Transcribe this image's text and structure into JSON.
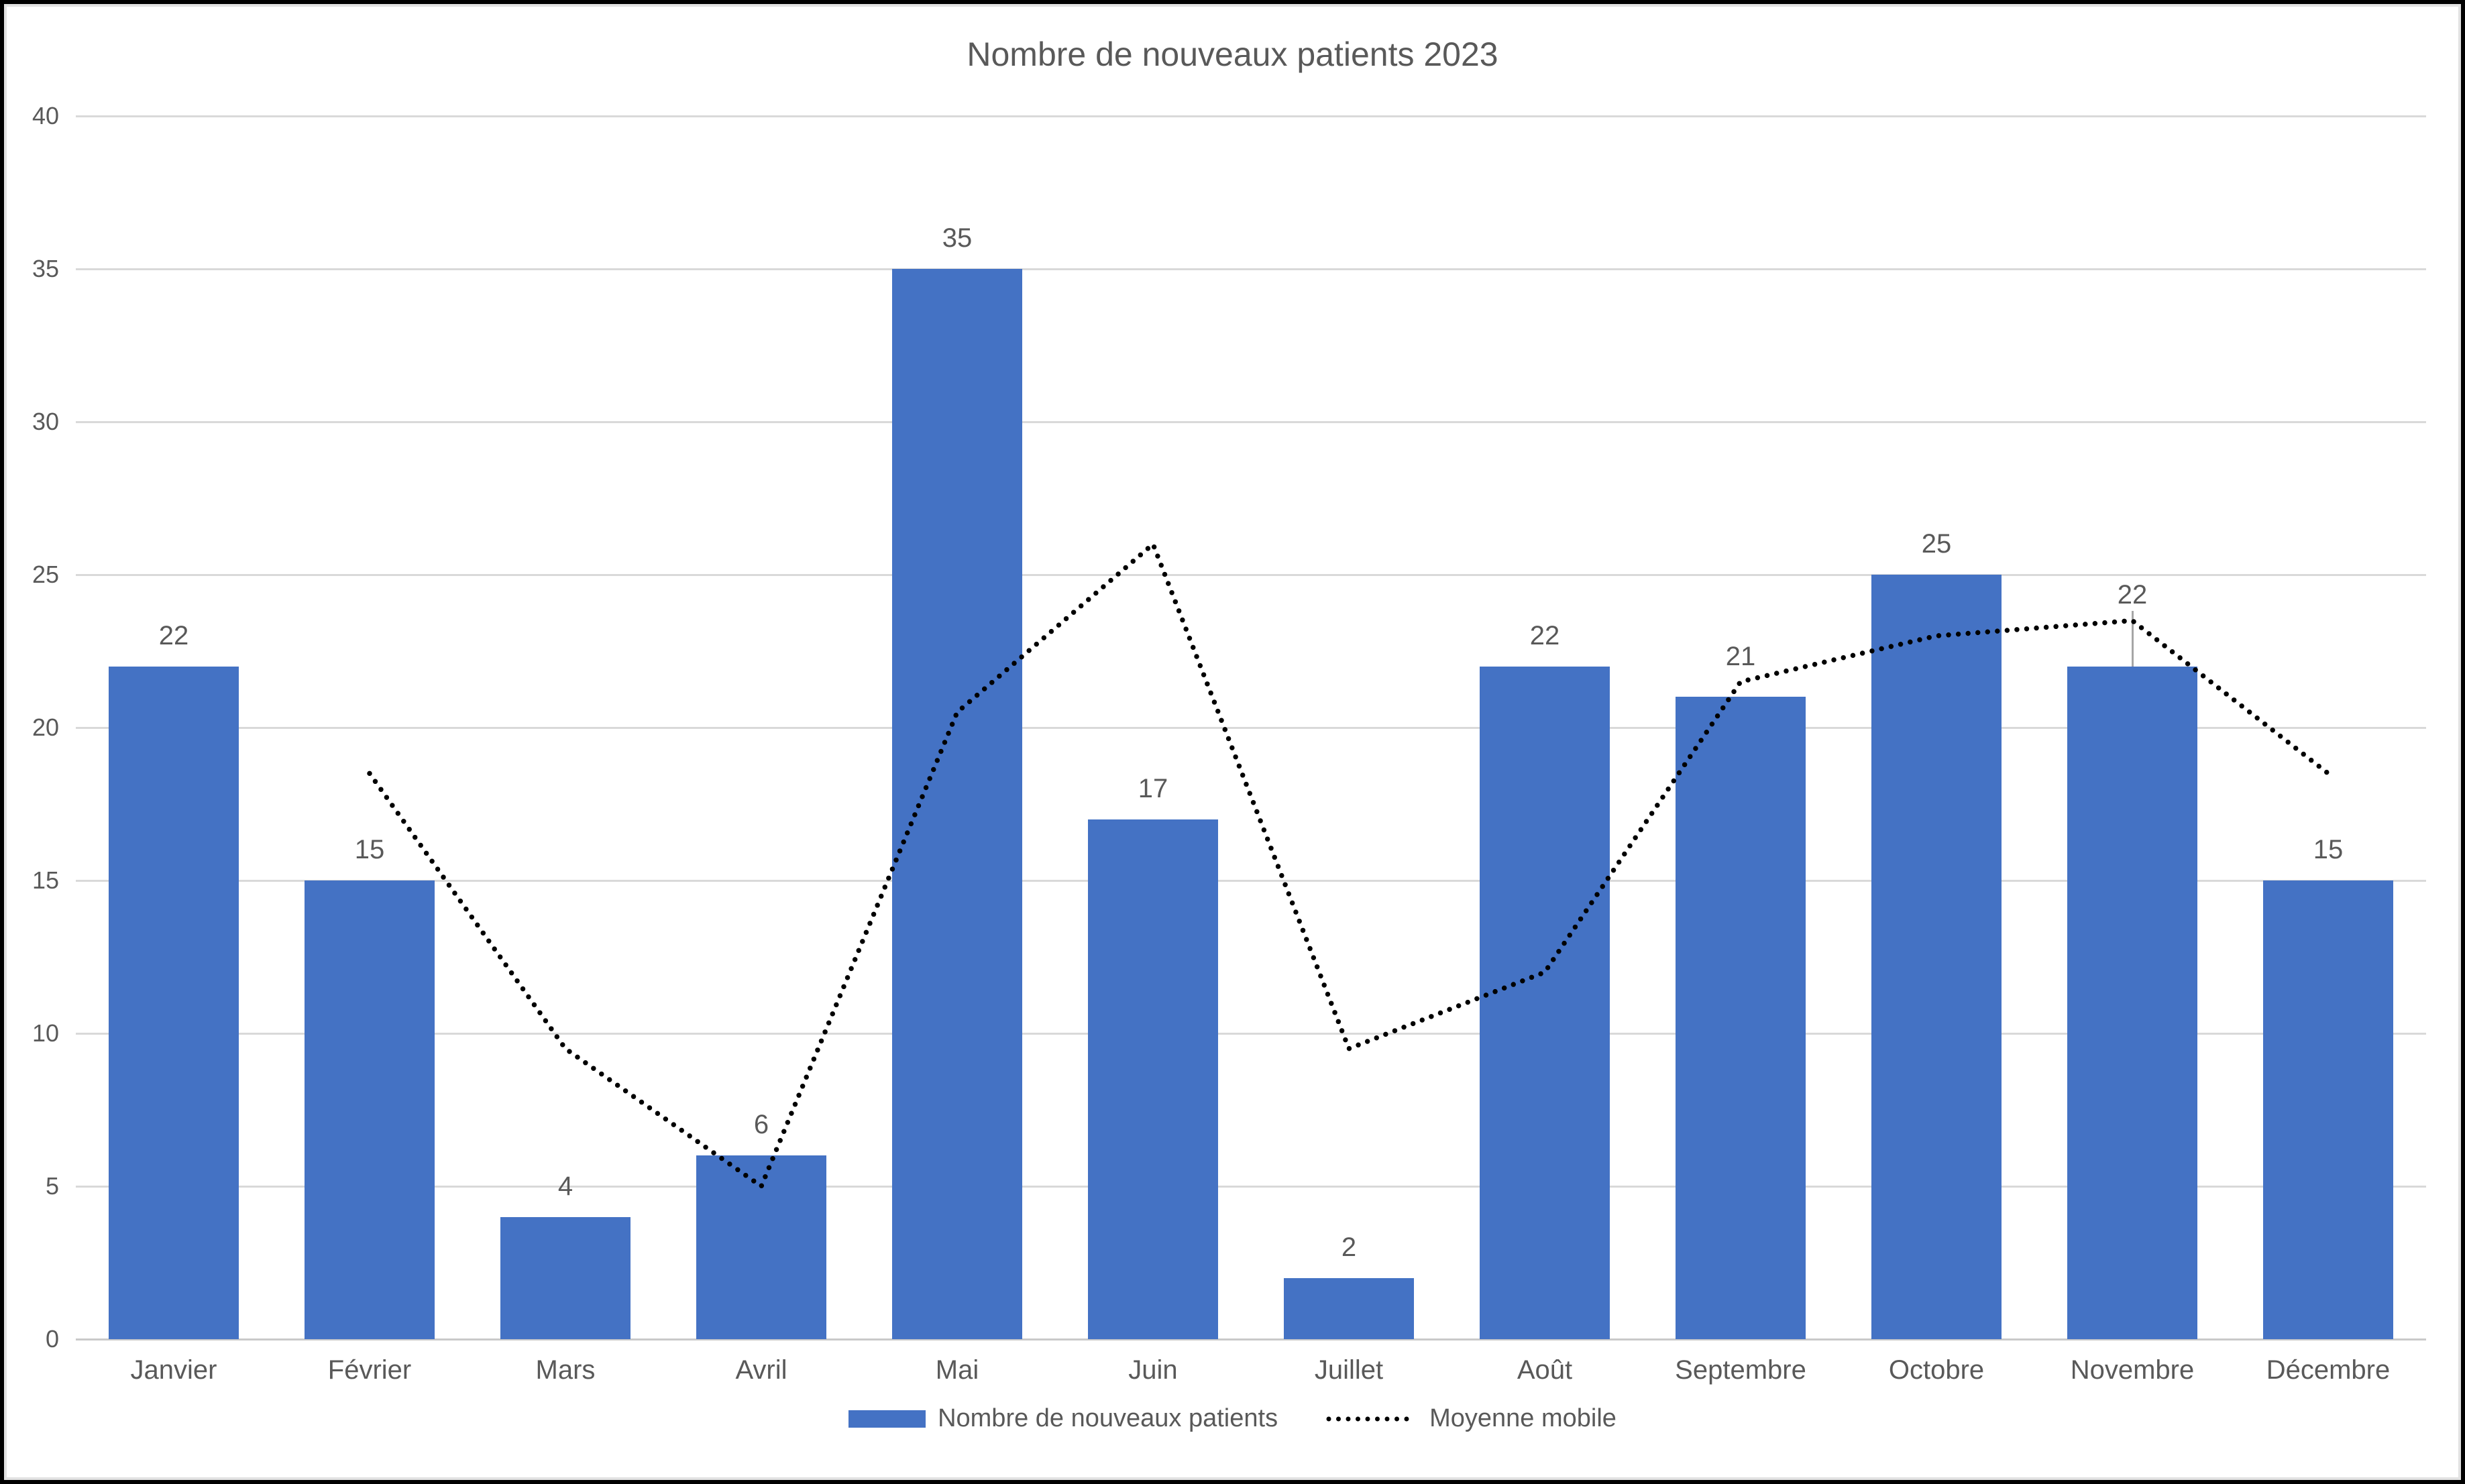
{
  "title": "Nombre de nouveaux patients 2023",
  "chart_data": {
    "type": "bar",
    "title": "Nombre de nouveaux patients 2023",
    "categories": [
      "Janvier",
      "Février",
      "Mars",
      "Avril",
      "Mai",
      "Juin",
      "Juillet",
      "Août",
      "Septembre",
      "Octobre",
      "Novembre",
      "Décembre"
    ],
    "series": [
      {
        "name": "Nombre de nouveaux patients",
        "type": "bar",
        "color": "#4472C4",
        "values": [
          22,
          15,
          4,
          6,
          35,
          17,
          2,
          22,
          21,
          25,
          22,
          15
        ],
        "data_labels": [
          "22",
          "15",
          "4",
          "6",
          "35",
          "17",
          "2",
          "22",
          "21",
          "25",
          "22",
          "15"
        ]
      },
      {
        "name": "Moyenne mobile",
        "type": "line",
        "line_style": "dotted",
        "color": "#000000",
        "values": [
          null,
          18.5,
          9.5,
          5,
          20.5,
          26,
          9.5,
          12,
          21.5,
          23,
          23.5,
          18.5
        ]
      }
    ],
    "xlabel": "",
    "ylabel": "",
    "ylim": [
      0,
      40
    ],
    "ytick_step": 5,
    "yticks": [
      "0",
      "5",
      "10",
      "15",
      "20",
      "25",
      "30",
      "35",
      "40"
    ],
    "grid": true,
    "legend_position": "bottom"
  },
  "colors": {
    "bar": "#4472C4",
    "line": "#000000",
    "grid": "#D9D9D9",
    "axis": "#C9C9C9",
    "text": "#595959",
    "leader": "#A6A6A6",
    "background": "#FFFFFF",
    "frame": "#000000"
  }
}
